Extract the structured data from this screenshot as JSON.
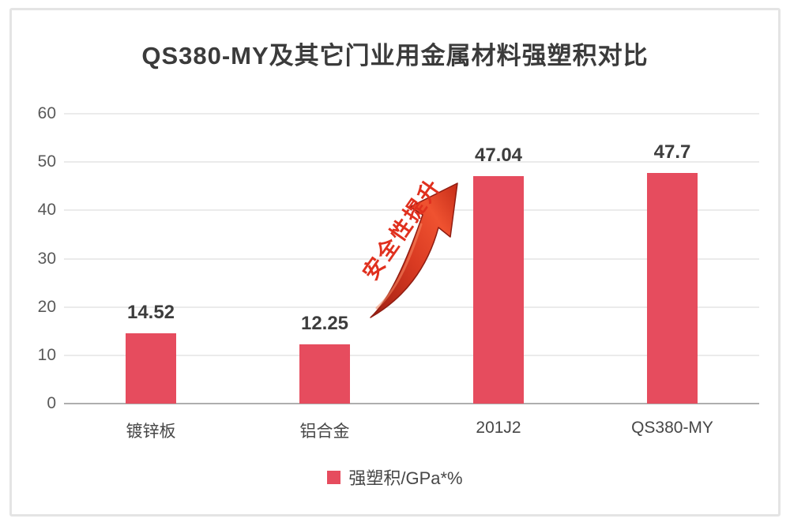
{
  "chart_data": {
    "type": "bar",
    "title": "QS380-MY及其它门业用金属材料强塑积对比",
    "categories": [
      "镀锌板",
      "铝合金",
      "201J2",
      "QS380-MY"
    ],
    "values": [
      14.52,
      12.25,
      47.04,
      47.7
    ],
    "value_labels": [
      "14.52",
      "12.25",
      "47.04",
      "47.7"
    ],
    "legend": "强塑积/GPa*%",
    "ylabel": "",
    "xlabel": "",
    "ylim": [
      0,
      60
    ],
    "yticks": [
      0,
      10,
      20,
      30,
      40,
      50,
      60
    ],
    "grid": "horizontal-on",
    "legend_position": "bottom",
    "bar_color": "#e64c5e"
  },
  "annotation": {
    "text": "安全性提升",
    "text_color": "#e0301e",
    "arrow_icon": "curved-up-right-red-arrow"
  },
  "colors": {
    "bar": "#e64c5e",
    "frame_border": "#e4e4e4",
    "gridline": "#ebebeb",
    "axis_line": "#aeaeae",
    "title_text": "#3b3b3b",
    "tick_text": "#595959",
    "background": "#ffffff"
  }
}
